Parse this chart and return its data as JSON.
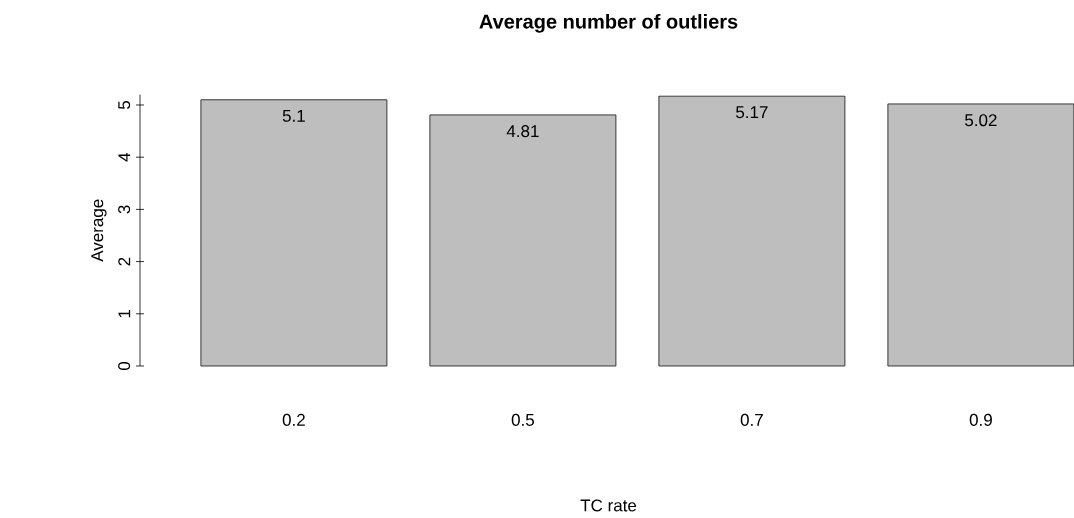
{
  "chart_data": {
    "type": "bar",
    "title": "Average number of outliers",
    "xlabel": "TC rate",
    "ylabel": "Average",
    "categories": [
      "0.2",
      "0.5",
      "0.7",
      "0.9"
    ],
    "values": [
      5.1,
      4.81,
      5.17,
      5.02
    ],
    "value_labels": [
      "5.1",
      "4.81",
      "5.17",
      "5.02"
    ],
    "color": "#bebebe",
    "ylim": [
      0,
      5.2
    ],
    "yticks": [
      0,
      1,
      2,
      3,
      4,
      5
    ]
  }
}
